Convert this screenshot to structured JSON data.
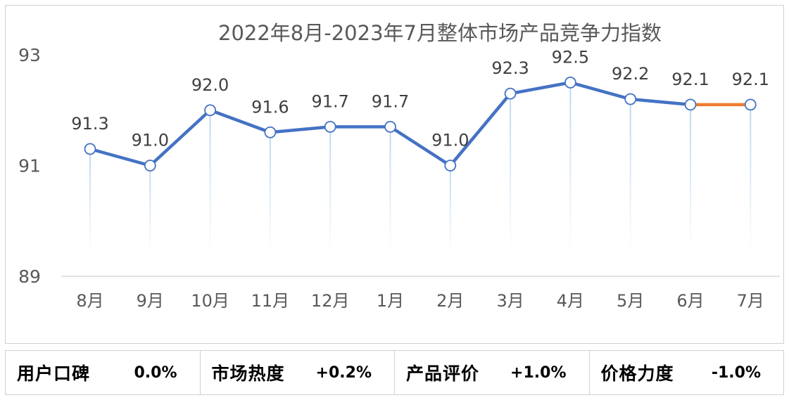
{
  "chart_data": {
    "type": "line",
    "title": "2022年8月-2023年7月整体市场产品竞争力指数",
    "categories": [
      "8月",
      "9月",
      "10月",
      "11月",
      "12月",
      "1月",
      "2月",
      "3月",
      "4月",
      "5月",
      "6月",
      "7月"
    ],
    "values": [
      91.3,
      91.0,
      92.0,
      91.6,
      91.7,
      91.7,
      91.0,
      92.3,
      92.5,
      92.2,
      92.1,
      92.1
    ],
    "data_labels": [
      "91.3",
      "91.0",
      "92.0",
      "91.6",
      "91.7",
      "91.7",
      "91.0",
      "92.3",
      "92.5",
      "92.2",
      "92.1",
      "92.1"
    ],
    "ylim": [
      89,
      93
    ],
    "yticks": [
      "89",
      "91",
      "93"
    ],
    "line_color": "#4472C4",
    "last_segment_color": "#ED7D31",
    "drop_line_color": "#BDD7EE",
    "grid": false
  },
  "metrics": [
    {
      "label": "用户口碑",
      "value": "0.0%"
    },
    {
      "label": "市场热度",
      "value": "+0.2%"
    },
    {
      "label": "产品评价",
      "value": "+1.0%"
    },
    {
      "label": "价格力度",
      "value": "-1.0%"
    }
  ]
}
